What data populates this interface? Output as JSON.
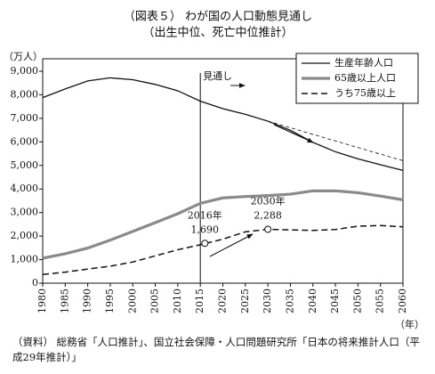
{
  "chart_data": {
    "type": "line",
    "title": "（図表５） わが国の人口動態見通し",
    "subtitle": "（出生中位、死亡中位推計）",
    "y_label": "（万人）",
    "x_label": "（年）",
    "source": "（資料） 総務省「人口推計」、国立社会保障・人口問題研究所「日本の将来推計人口（平成29年推計）」",
    "forecast_label": "見通し",
    "forecast_start": 2015,
    "x": [
      1980,
      1985,
      1990,
      1995,
      2000,
      2005,
      2010,
      2015,
      2020,
      2025,
      2030,
      2035,
      2040,
      2045,
      2050,
      2055,
      2060
    ],
    "series": [
      {
        "name": "生産年齢人口",
        "color": "#111111",
        "width": 1.3,
        "dash": "solid",
        "values": [
          7880,
          8250,
          8590,
          8720,
          8640,
          8440,
          8170,
          7730,
          7410,
          7170,
          6880,
          6490,
          5980,
          5580,
          5280,
          5030,
          4790
        ]
      },
      {
        "name": "65歳以上人口",
        "color": "#8a8a8a",
        "width": 3.2,
        "dash": "solid",
        "values": [
          1060,
          1250,
          1490,
          1830,
          2200,
          2570,
          2950,
          3390,
          3620,
          3680,
          3720,
          3780,
          3920,
          3920,
          3840,
          3700,
          3540
        ]
      },
      {
        "name": "うち75歳以上",
        "color": "#111111",
        "width": 1.5,
        "dash": "dashed",
        "values": [
          370,
          470,
          600,
          720,
          900,
          1160,
          1420,
          1630,
          1870,
          2180,
          2288,
          2260,
          2240,
          2280,
          2420,
          2450,
          2390
        ]
      }
    ],
    "reference_line": {
      "color": "#111111",
      "x": [
        2030,
        2060
      ],
      "values": [
        6880,
        5200
      ]
    },
    "annotations": [
      {
        "year_label": "2016年",
        "value_label": "1,690",
        "x": 2016,
        "value": 1690
      },
      {
        "year_label": "2030年",
        "value_label": "2,288",
        "x": 2030,
        "value": 2288
      }
    ],
    "xlim": [
      1980,
      2060
    ],
    "xticks": [
      1980,
      1985,
      1990,
      1995,
      2000,
      2005,
      2010,
      2015,
      2020,
      2025,
      2030,
      2035,
      2040,
      2045,
      2050,
      2055,
      2060
    ],
    "ylim": [
      0,
      9000
    ],
    "yticks": [
      0,
      {
        "value": 1000,
        "label": "1,000"
      },
      {
        "value": 2000,
        "label": "2,000"
      },
      {
        "value": 3000,
        "label": "3,000"
      },
      {
        "value": 4000,
        "label": "4,000"
      },
      {
        "value": 5000,
        "label": "5,000"
      },
      {
        "value": 6000,
        "label": "6,000"
      },
      {
        "value": 7000,
        "label": "7,000"
      },
      {
        "value": 8000,
        "label": "8,000"
      },
      {
        "value": 9000,
        "label": "9,000"
      }
    ],
    "grid": false,
    "legend": "top-right"
  }
}
